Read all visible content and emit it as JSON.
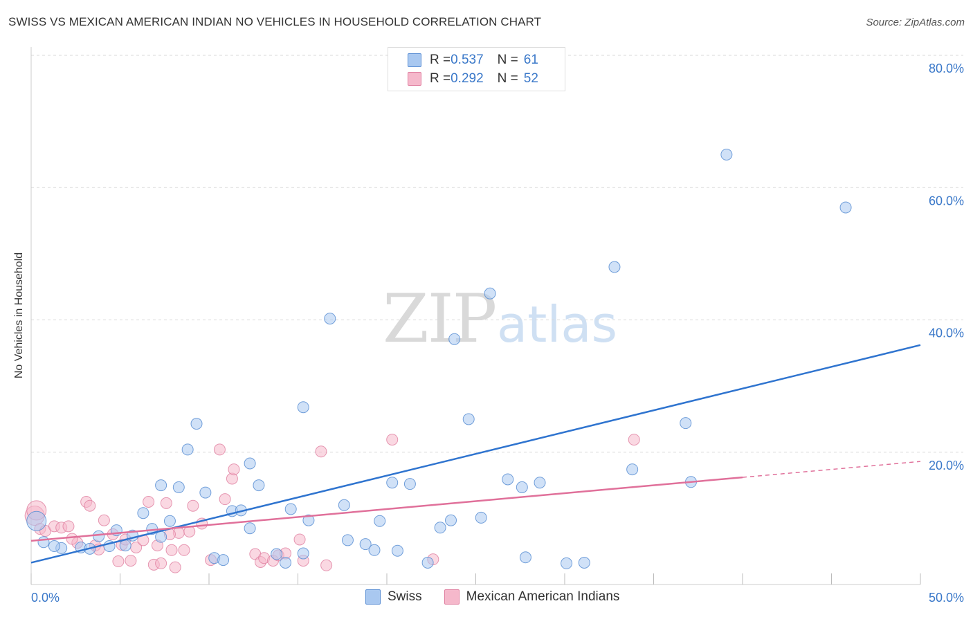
{
  "title": "SWISS VS MEXICAN AMERICAN INDIAN NO VEHICLES IN HOUSEHOLD CORRELATION CHART",
  "source": "Source: ZipAtlas.com",
  "watermark": {
    "zip": "ZIP",
    "atlas": "atlas"
  },
  "legend": {
    "swiss": {
      "r_label": "R = ",
      "r_value": "0.537",
      "n_label": "N = ",
      "n_value": "61"
    },
    "mexican": {
      "r_label": "R = ",
      "r_value": "0.292",
      "n_label": "N = ",
      "n_value": "52"
    }
  },
  "colors": {
    "swiss_fill": "#a9c8f0",
    "swiss_stroke": "#5b8fd4",
    "swiss_line": "#2f74cf",
    "mexican_fill": "#f5b8cb",
    "mexican_stroke": "#e07fa0",
    "mexican_line": "#e0709a",
    "tick_label": "#3a78c9",
    "grid": "#d8d8d8"
  },
  "chart_data": {
    "type": "scatter",
    "title": "SWISS VS MEXICAN AMERICAN INDIAN NO VEHICLES IN HOUSEHOLD CORRELATION CHART",
    "xlabel": "",
    "ylabel": "No Vehicles in Household",
    "xlim": [
      0,
      50
    ],
    "ylim": [
      0,
      80
    ],
    "x_tick_labels": [
      "0.0%",
      "50.0%"
    ],
    "y_ticks": [
      20,
      40,
      60,
      80
    ],
    "y_tick_labels": [
      "20.0%",
      "40.0%",
      "60.0%",
      "80.0%"
    ],
    "grid": true,
    "legend_position": "top-center",
    "series": [
      {
        "name": "Swiss",
        "trend": {
          "x": [
            0,
            50
          ],
          "y": [
            3.3,
            36.2
          ]
        },
        "points": [
          [
            0.3,
            9.6
          ],
          [
            0.7,
            6.4
          ],
          [
            1.7,
            5.5
          ],
          [
            2.8,
            5.6
          ],
          [
            3.3,
            5.4
          ],
          [
            3.8,
            7.3
          ],
          [
            4.4,
            5.8
          ],
          [
            4.8,
            8.2
          ],
          [
            5.3,
            5.9
          ],
          [
            5.7,
            7.4
          ],
          [
            6.3,
            10.8
          ],
          [
            6.8,
            8.4
          ],
          [
            7.3,
            15.0
          ],
          [
            7.8,
            9.6
          ],
          [
            8.3,
            14.7
          ],
          [
            8.8,
            20.4
          ],
          [
            9.3,
            24.3
          ],
          [
            9.8,
            13.9
          ],
          [
            10.3,
            4.0
          ],
          [
            10.8,
            3.7
          ],
          [
            11.3,
            11.1
          ],
          [
            11.8,
            11.2
          ],
          [
            12.3,
            8.5
          ],
          [
            12.3,
            18.3
          ],
          [
            12.8,
            15.0
          ],
          [
            13.8,
            4.6
          ],
          [
            14.3,
            3.3
          ],
          [
            14.6,
            11.4
          ],
          [
            15.3,
            4.7
          ],
          [
            15.6,
            9.7
          ],
          [
            15.3,
            26.8
          ],
          [
            16.8,
            40.2
          ],
          [
            17.6,
            12.0
          ],
          [
            17.8,
            6.7
          ],
          [
            18.8,
            6.1
          ],
          [
            19.3,
            5.2
          ],
          [
            19.6,
            9.6
          ],
          [
            20.3,
            15.4
          ],
          [
            20.6,
            5.1
          ],
          [
            21.3,
            15.2
          ],
          [
            22.3,
            3.3
          ],
          [
            23.0,
            8.6
          ],
          [
            23.6,
            9.7
          ],
          [
            23.8,
            37.1
          ],
          [
            24.6,
            25.0
          ],
          [
            25.3,
            10.1
          ],
          [
            25.8,
            44.0
          ],
          [
            26.8,
            15.9
          ],
          [
            27.6,
            14.7
          ],
          [
            27.8,
            4.1
          ],
          [
            28.6,
            15.4
          ],
          [
            30.1,
            3.2
          ],
          [
            31.1,
            3.3
          ],
          [
            32.8,
            48.0
          ],
          [
            33.8,
            17.4
          ],
          [
            36.8,
            24.4
          ],
          [
            37.1,
            15.5
          ],
          [
            39.1,
            65.0
          ],
          [
            45.8,
            57.0
          ],
          [
            1.3,
            5.8
          ],
          [
            7.3,
            7.2
          ]
        ],
        "sizes_note": "all points same size except first (large)"
      },
      {
        "name": "Mexican American Indians",
        "trend": {
          "x": [
            0,
            40
          ],
          "y": [
            6.6,
            16.2
          ]
        },
        "trend_dashed": {
          "x": [
            40,
            50
          ],
          "y": [
            16.2,
            18.6
          ]
        },
        "points": [
          [
            0.2,
            10.4
          ],
          [
            0.5,
            8.4
          ],
          [
            0.8,
            8.1
          ],
          [
            1.3,
            8.8
          ],
          [
            1.7,
            8.6
          ],
          [
            2.1,
            8.8
          ],
          [
            2.6,
            6.3
          ],
          [
            3.1,
            12.5
          ],
          [
            3.3,
            11.9
          ],
          [
            3.6,
            5.9
          ],
          [
            4.1,
            9.7
          ],
          [
            4.6,
            7.6
          ],
          [
            4.9,
            3.5
          ],
          [
            5.1,
            6.0
          ],
          [
            5.6,
            3.6
          ],
          [
            5.9,
            5.6
          ],
          [
            6.3,
            6.7
          ],
          [
            6.6,
            12.5
          ],
          [
            6.9,
            3.0
          ],
          [
            7.1,
            5.9
          ],
          [
            7.3,
            3.2
          ],
          [
            7.6,
            12.3
          ],
          [
            7.9,
            5.2
          ],
          [
            8.1,
            2.6
          ],
          [
            8.3,
            7.8
          ],
          [
            8.6,
            5.2
          ],
          [
            8.9,
            8.0
          ],
          [
            9.1,
            11.9
          ],
          [
            9.6,
            9.2
          ],
          [
            10.1,
            3.7
          ],
          [
            10.6,
            20.4
          ],
          [
            10.9,
            12.9
          ],
          [
            11.3,
            16.0
          ],
          [
            11.4,
            17.4
          ],
          [
            12.6,
            4.6
          ],
          [
            12.9,
            3.4
          ],
          [
            13.1,
            4.0
          ],
          [
            13.6,
            3.6
          ],
          [
            13.9,
            4.4
          ],
          [
            14.3,
            4.7
          ],
          [
            15.1,
            6.8
          ],
          [
            15.3,
            3.6
          ],
          [
            16.3,
            20.1
          ],
          [
            16.6,
            2.9
          ],
          [
            20.3,
            21.9
          ],
          [
            22.6,
            3.8
          ],
          [
            33.9,
            21.9
          ],
          [
            0.3,
            11.2
          ],
          [
            2.3,
            6.9
          ],
          [
            5.3,
            6.8
          ],
          [
            3.8,
            5.3
          ],
          [
            7.8,
            7.6
          ]
        ]
      }
    ]
  },
  "bottom_legend": {
    "swiss": "Swiss",
    "mexican": "Mexican American Indians"
  }
}
